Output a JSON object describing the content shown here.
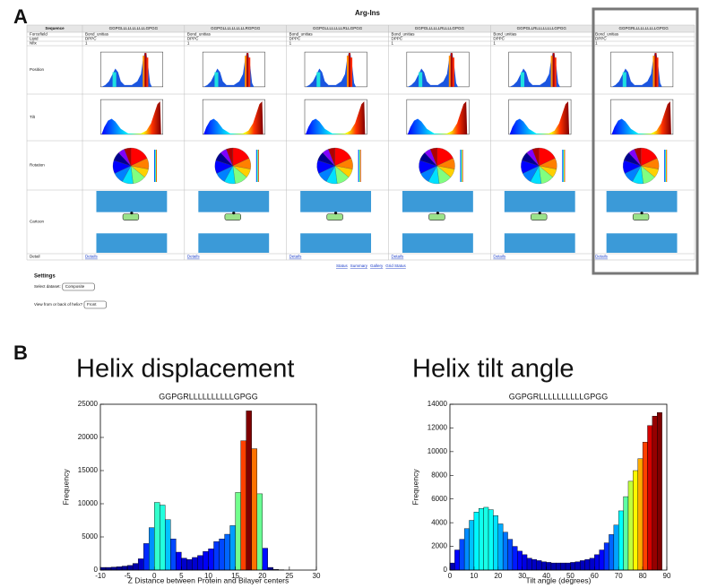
{
  "panel_labels": [
    "A",
    "B"
  ],
  "screenshot": {
    "title": "Arg-Ins",
    "row_headers": [
      "Sequence",
      "Forcefield",
      "Lipid",
      "Nfix",
      "Position",
      "Tilt",
      "Rotation",
      "Cartoon",
      "Detail"
    ],
    "columns": [
      {
        "sequence": "GGPGLLLLLLLLLLLGPGG",
        "forcefield": "Bond_unitias",
        "lipid": "DPPC",
        "n": "1",
        "detail": "Details"
      },
      {
        "sequence": "GGPGLLLLLLLLLLRGPGG",
        "forcefield": "Bond_unitias",
        "lipid": "DPPC",
        "n": "1",
        "detail": "Details"
      },
      {
        "sequence": "GGPGLLLLLLLLRLLGPGG",
        "forcefield": "Bond_unitias",
        "lipid": "DPPC",
        "n": "1",
        "detail": "Details"
      },
      {
        "sequence": "GGPGLLLLLLRLLLLGPGG",
        "forcefield": "Bond_unitias",
        "lipid": "DPPC",
        "n": "1",
        "detail": "Details"
      },
      {
        "sequence": "GGPGLLRLLLLLLLLGPGG",
        "forcefield": "Bond_unitias",
        "lipid": "DPPC",
        "n": "1",
        "detail": "Details"
      },
      {
        "sequence": "GGPGRLLLLLLLLLLGPGG",
        "forcefield": "Bond_unitias",
        "lipid": "DPPC",
        "n": "1",
        "detail": "Details"
      }
    ],
    "footer_links": [
      "Status",
      "Summary",
      "Gallery",
      "Grid Status"
    ],
    "settings": {
      "title": "Settings",
      "fields": [
        {
          "label": "Select dataset:",
          "value": "Composite"
        },
        {
          "label": "View from or back of helix?",
          "value": "Front"
        }
      ]
    }
  },
  "chart_data": [
    {
      "type": "histogram",
      "heading": "Helix displacement",
      "title": "GGPGRLLLLLLLLLLGPGG",
      "x_label": "Z Distance between Protein and Bilayer centers",
      "y_label": "Frequency",
      "bins": [
        -10,
        -9,
        -8,
        -7,
        -6,
        -5,
        -4,
        -3,
        -2,
        -1,
        0,
        1,
        2,
        3,
        4,
        5,
        6,
        7,
        8,
        9,
        10,
        11,
        12,
        13,
        14,
        15,
        16,
        17,
        18,
        19,
        20,
        21,
        22,
        23,
        24
      ],
      "values": [
        400,
        400,
        450,
        500,
        600,
        700,
        1000,
        1700,
        4000,
        6400,
        10200,
        9800,
        7600,
        4700,
        2700,
        1800,
        1600,
        1900,
        2200,
        2800,
        3200,
        4300,
        4700,
        5400,
        6700,
        11700,
        19500,
        24000,
        18300,
        11500,
        3300,
        400,
        100,
        50
      ],
      "xlim": [
        -10,
        30
      ],
      "xticks": [
        -10,
        -5,
        0,
        5,
        10,
        15,
        20,
        25,
        30
      ],
      "ylim": [
        0,
        25000
      ],
      "yticks": [
        0,
        5000,
        10000,
        15000,
        20000,
        25000
      ],
      "colormap": [
        "#00007f",
        "#0000ff",
        "#007fff",
        "#00ffff",
        "#7fff7f",
        "#ffff00",
        "#ff7f00",
        "#ff0000",
        "#7f0000"
      ]
    },
    {
      "type": "histogram",
      "heading": "Helix tilt angle",
      "title": "GGPGRLLLLLLLLLLGPGG",
      "x_label": "Tilt angle (degrees)",
      "y_label": "Frequency",
      "bins": [
        0,
        2,
        4,
        6,
        8,
        10,
        12,
        14,
        16,
        18,
        20,
        22,
        24,
        26,
        28,
        30,
        32,
        34,
        36,
        38,
        40,
        42,
        44,
        46,
        48,
        50,
        52,
        54,
        56,
        58,
        60,
        62,
        64,
        66,
        68,
        70,
        72,
        74,
        76,
        78,
        80,
        82,
        84,
        86,
        88
      ],
      "values": [
        600,
        1700,
        2600,
        3500,
        4200,
        4900,
        5200,
        5300,
        5100,
        4600,
        3900,
        3200,
        2600,
        2000,
        1600,
        1300,
        1000,
        900,
        800,
        700,
        650,
        600,
        600,
        600,
        600,
        650,
        700,
        800,
        900,
        1000,
        1300,
        1700,
        2300,
        3000,
        3800,
        5000,
        6200,
        7500,
        8400,
        9400,
        10800,
        12200,
        13000,
        13300
      ],
      "xlim": [
        0,
        90
      ],
      "xticks": [
        0,
        10,
        20,
        30,
        40,
        50,
        60,
        70,
        80,
        90
      ],
      "ylim": [
        0,
        14000
      ],
      "yticks": [
        0,
        2000,
        4000,
        6000,
        8000,
        10000,
        12000,
        14000
      ],
      "colormap": [
        "#00007f",
        "#0000ff",
        "#007fff",
        "#00ffff",
        "#7fff7f",
        "#ffff00",
        "#ff7f00",
        "#ff0000",
        "#7f0000"
      ]
    }
  ]
}
